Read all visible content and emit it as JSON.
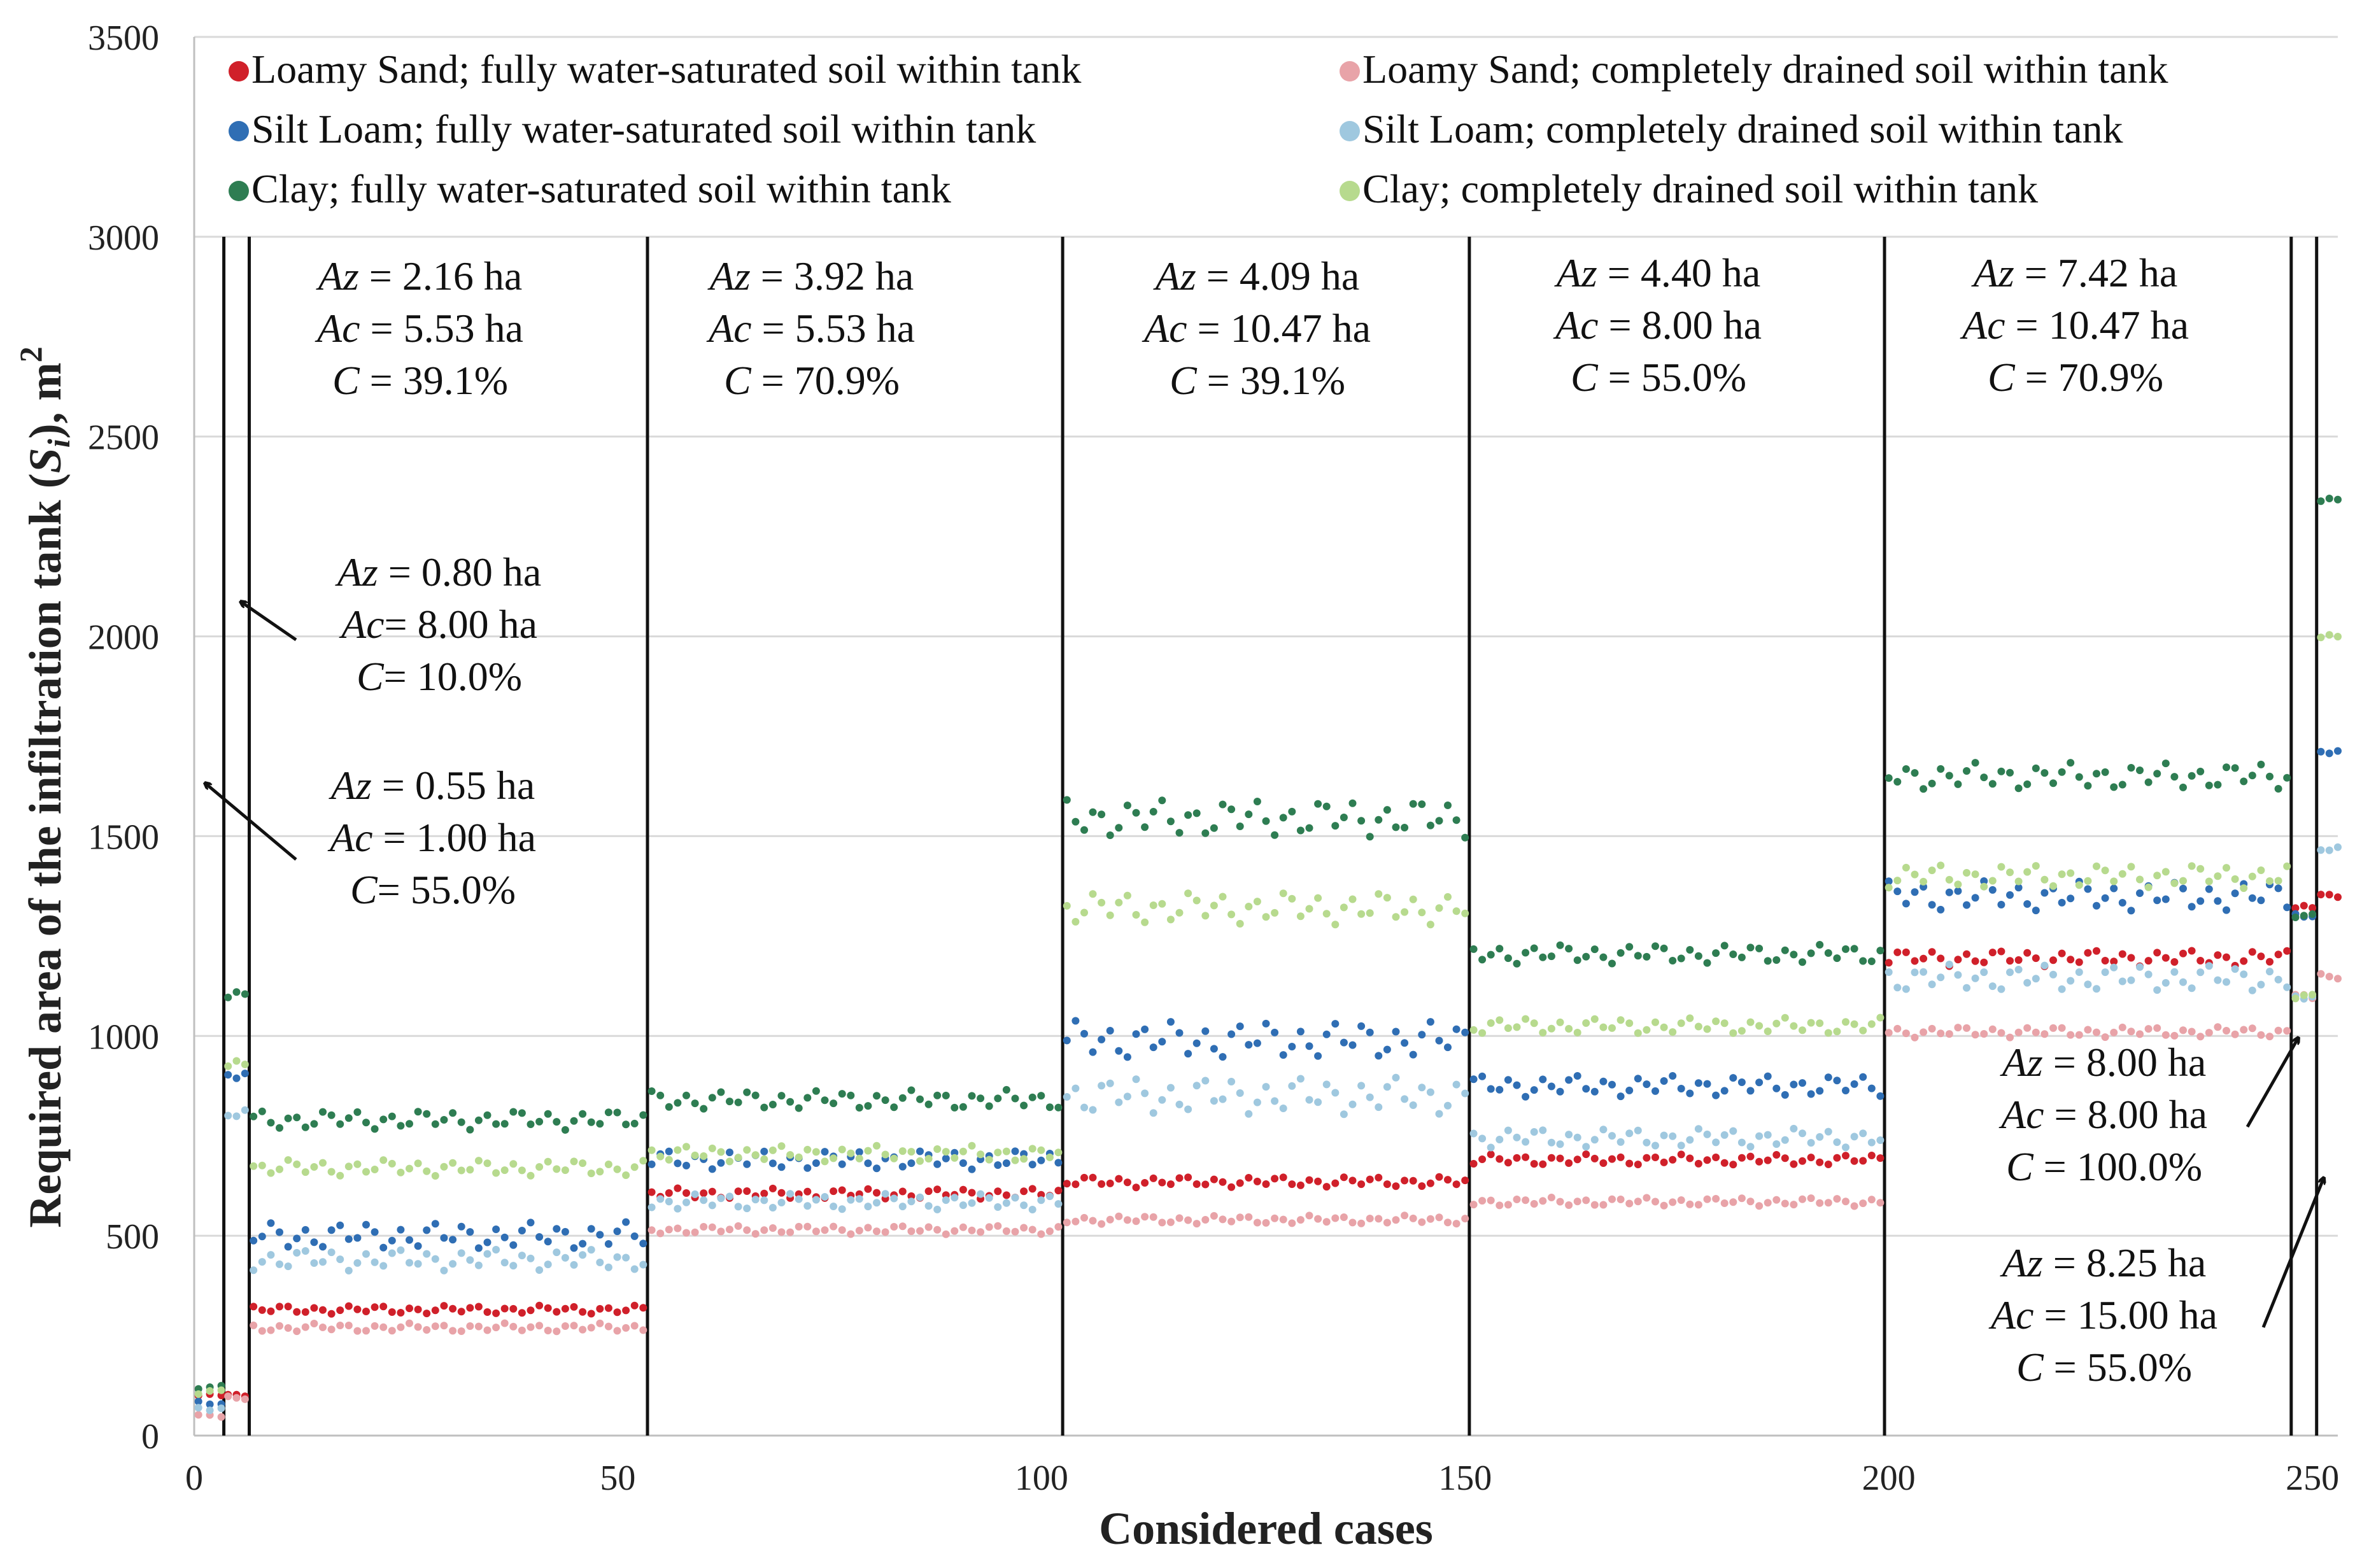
{
  "chart_data": {
    "type": "scatter",
    "title": "",
    "xlabel": "Considered cases",
    "ylabel_parts": [
      "Required area of the infiltration tank (",
      "S",
      "i",
      "), m",
      "2"
    ],
    "xlim": [
      0,
      253
    ],
    "ylim": [
      0,
      3500
    ],
    "xticks": [
      0,
      50,
      100,
      150,
      200,
      250
    ],
    "yticks": [
      0,
      500,
      1000,
      1500,
      2000,
      2500,
      3000,
      3500
    ],
    "grid": true,
    "legend_position": "top",
    "legend": [
      {
        "label": "Loamy Sand; fully water-saturated soil within tank",
        "color": "#d0202a"
      },
      {
        "label": "Silt Loam; fully water-saturated soil within tank",
        "color": "#2f6eb4"
      },
      {
        "label": "Clay; fully water-saturated soil within tank",
        "color": "#2e7d52"
      },
      {
        "label": "Loamy Sand; completely drained soil within tank",
        "color": "#e8a3a8"
      },
      {
        "label": "Silt Loam; completely drained soil within tank",
        "color": "#9fc8df"
      },
      {
        "label": "Clay; completely drained soil within tank",
        "color": "#b7da8e"
      }
    ],
    "series_order": [
      "Loamy Sand saturated",
      "Silt Loam saturated",
      "Clay saturated",
      "Loamy Sand drained",
      "Silt Loam drained",
      "Clay drained"
    ],
    "boundaries": [
      3.5,
      6.5,
      53.5,
      102.5,
      150.5,
      199.5,
      247.5,
      250.5
    ],
    "groups": [
      {
        "x_start": 0.5,
        "x_end": 3.2,
        "n": 3,
        "means": [
          100,
          80,
          120,
          50,
          70,
          110
        ],
        "amplitude": [
          3,
          5,
          5,
          3,
          5,
          5
        ]
      },
      {
        "x_start": 4,
        "x_end": 6,
        "n": 3,
        "means": [
          100,
          900,
          1100,
          95,
          810,
          930
        ],
        "amplitude": [
          3,
          10,
          10,
          3,
          10,
          10
        ]
      },
      {
        "x_start": 7,
        "x_end": 53,
        "n": 46,
        "means": [
          315,
          500,
          790,
          270,
          440,
          670
        ],
        "amplitude": [
          8,
          25,
          18,
          8,
          20,
          15
        ]
      },
      {
        "x_start": 54,
        "x_end": 102,
        "n": 48,
        "means": [
          605,
          690,
          840,
          515,
          585,
          705
        ],
        "amplitude": [
          10,
          18,
          18,
          8,
          15,
          15
        ]
      },
      {
        "x_start": 103,
        "x_end": 150,
        "n": 47,
        "means": [
          635,
          990,
          1545,
          540,
          850,
          1320
        ],
        "amplitude": [
          10,
          35,
          35,
          8,
          35,
          30
        ]
      },
      {
        "x_start": 151,
        "x_end": 199,
        "n": 48,
        "means": [
          690,
          875,
          1205,
          585,
          745,
          1025
        ],
        "amplitude": [
          10,
          20,
          18,
          8,
          18,
          15
        ]
      },
      {
        "x_start": 200,
        "x_end": 247,
        "n": 47,
        "means": [
          1195,
          1350,
          1650,
          1010,
          1145,
          1400
        ],
        "amplitude": [
          15,
          28,
          25,
          10,
          25,
          22
        ]
      },
      {
        "x_start": 248,
        "x_end": 250,
        "n": 3,
        "means": [
          1320,
          1300,
          1300,
          1100,
          1100,
          1100
        ],
        "amplitude": [
          5,
          5,
          5,
          5,
          5,
          5
        ]
      },
      {
        "x_start": 251,
        "x_end": 253,
        "n": 3,
        "means": [
          1350,
          1710,
          2340,
          1150,
          1470,
          2000
        ],
        "amplitude": [
          5,
          5,
          5,
          5,
          5,
          5
        ]
      }
    ],
    "annotations": [
      {
        "lines": [
          [
            "Az",
            " = 2.16 ha"
          ],
          [
            "Ac",
            " = 5.53 ha"
          ],
          [
            "C",
            " = 39.1%"
          ]
        ]
      },
      {
        "lines": [
          [
            "Az",
            " = 3.92 ha"
          ],
          [
            "Ac",
            " = 5.53 ha"
          ],
          [
            "C",
            " = 70.9%"
          ]
        ]
      },
      {
        "lines": [
          [
            "Az",
            " = 4.09 ha"
          ],
          [
            "Ac",
            " = 10.47 ha"
          ],
          [
            "C",
            " = 39.1%"
          ]
        ]
      },
      {
        "lines": [
          [
            "Az",
            " = 4.40 ha"
          ],
          [
            "Ac",
            " = 8.00 ha"
          ],
          [
            "C",
            " = 55.0%"
          ]
        ]
      },
      {
        "lines": [
          [
            "Az",
            " = 7.42 ha"
          ],
          [
            "Ac",
            " = 10.47 ha"
          ],
          [
            "C",
            " = 70.9%"
          ]
        ]
      },
      {
        "lines": [
          [
            "Az",
            " = 0.80 ha"
          ],
          [
            "Ac",
            "= 8.00 ha"
          ],
          [
            "C",
            "= 10.0%"
          ]
        ]
      },
      {
        "lines": [
          [
            "Az",
            " = 0.55 ha"
          ],
          [
            "Ac",
            " = 1.00 ha"
          ],
          [
            "C",
            "= 55.0%"
          ]
        ]
      },
      {
        "lines": [
          [
            "Az",
            " = 8.00 ha"
          ],
          [
            "Ac",
            " = 8.00 ha"
          ],
          [
            "C",
            " = 100.0%"
          ]
        ]
      },
      {
        "lines": [
          [
            "Az",
            " = 8.25 ha"
          ],
          [
            "Ac",
            " = 15.00 ha"
          ],
          [
            "C",
            " = 55.0%"
          ]
        ]
      }
    ]
  }
}
